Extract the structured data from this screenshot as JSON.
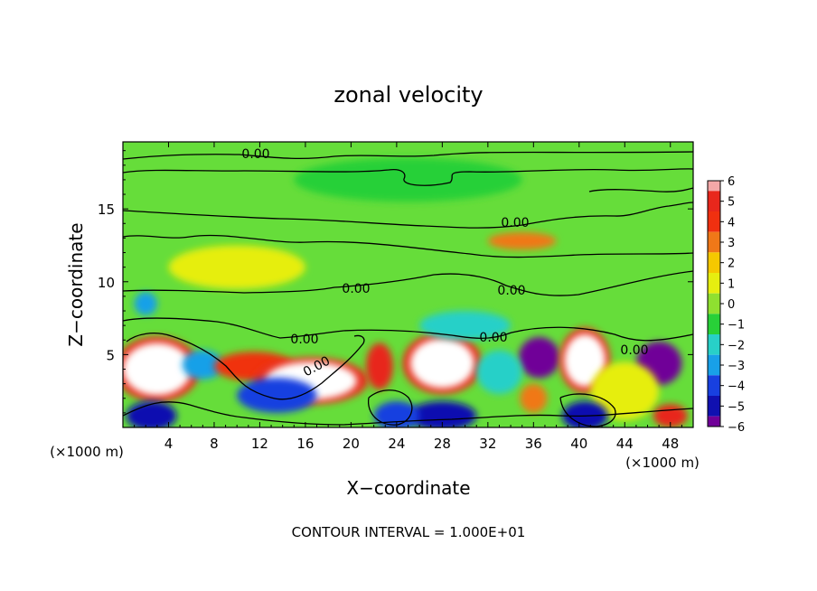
{
  "chart_data": {
    "type": "heatmap",
    "title": "zonal velocity",
    "xlabel": "X−coordinate",
    "ylabel": "Z−coordinate",
    "x_unit_left": "(×1000 m)",
    "x_unit_right": "(×1000 m)",
    "x_ticks": [
      4,
      8,
      12,
      16,
      20,
      24,
      28,
      32,
      36,
      40,
      44,
      48
    ],
    "x_tick_labels": [
      "4",
      "8",
      "12",
      "16",
      "20",
      "24",
      "28",
      "32",
      "36",
      "40",
      "44",
      "48"
    ],
    "y_ticks": [
      5,
      10,
      15
    ],
    "y_tick_labels": [
      "5",
      "10",
      "15"
    ],
    "xlim": [
      0,
      50
    ],
    "ylim": [
      0,
      19.6
    ],
    "colorbar": {
      "ticks": [
        6,
        5,
        4,
        3,
        2,
        1,
        0,
        -1,
        -2,
        -3,
        -4,
        -5,
        -6
      ],
      "labels": [
        "6",
        "5",
        "4",
        "3",
        "2",
        "1",
        "0",
        "−1",
        "−2",
        "−3",
        "−4",
        "−5",
        "−6"
      ],
      "colors": [
        "#f4a8a8",
        "#e8271c",
        "#f03010",
        "#f07818",
        "#f5c800",
        "#e6ee10",
        "#8fe030",
        "#28d038",
        "#28d0c8",
        "#18a0e8",
        "#1840e0",
        "#1010b0",
        "#700098"
      ],
      "vmin": -6,
      "vmax": 6
    },
    "contour_labels": [
      "0.00",
      "0.00",
      "0.00",
      "0.00",
      "0.00",
      "0.00",
      "0.00",
      "0.00"
    ],
    "contour_interval_text": "CONTOUR INTERVAL = 1.000E+01",
    "features": [
      {
        "x": 3.0,
        "z": 4.0,
        "value": 8,
        "rx": 3.0,
        "rz": 1.8
      },
      {
        "x": 7.0,
        "z": 4.3,
        "value": -3,
        "rx": 1.8,
        "rz": 1.0
      },
      {
        "x": 11.5,
        "z": 4.2,
        "value": 4,
        "rx": 3.5,
        "rz": 1.0
      },
      {
        "x": 16.5,
        "z": 3.2,
        "value": 9,
        "rx": 4.0,
        "rz": 1.3
      },
      {
        "x": 13.5,
        "z": 2.2,
        "value": -4,
        "rx": 3.5,
        "rz": 1.2
      },
      {
        "x": 22.5,
        "z": 4.2,
        "value": 5,
        "rx": 1.2,
        "rz": 1.6
      },
      {
        "x": 28.0,
        "z": 4.4,
        "value": 8,
        "rx": 2.8,
        "rz": 1.7
      },
      {
        "x": 28.0,
        "z": 0.8,
        "value": -4.5,
        "rx": 3.0,
        "rz": 1.0
      },
      {
        "x": 24.0,
        "z": 0.8,
        "value": -3.5,
        "rx": 2.0,
        "rz": 1.0
      },
      {
        "x": 36.5,
        "z": 4.8,
        "value": -6,
        "rx": 1.8,
        "rz": 1.4
      },
      {
        "x": 33.0,
        "z": 3.8,
        "value": -2,
        "rx": 2.0,
        "rz": 1.5
      },
      {
        "x": 40.5,
        "z": 4.6,
        "value": 8,
        "rx": 1.8,
        "rz": 1.8
      },
      {
        "x": 47.0,
        "z": 4.4,
        "value": -6,
        "rx": 2.0,
        "rz": 1.5
      },
      {
        "x": 44.0,
        "z": 2.5,
        "value": 1.5,
        "rx": 3.0,
        "rz": 2.0
      },
      {
        "x": 36.0,
        "z": 2.0,
        "value": 3,
        "rx": 1.2,
        "rz": 1.0
      },
      {
        "x": 40.5,
        "z": 0.8,
        "value": -5,
        "rx": 2.0,
        "rz": 1.0
      },
      {
        "x": 48.0,
        "z": 0.8,
        "value": 5,
        "rx": 1.5,
        "rz": 0.8
      },
      {
        "x": 2.5,
        "z": 0.8,
        "value": -5,
        "rx": 2.2,
        "rz": 1.0
      },
      {
        "x": 35.0,
        "z": 12.8,
        "value": 3,
        "rx": 3.0,
        "rz": 0.6
      },
      {
        "x": 2.0,
        "z": 8.5,
        "value": -2.5,
        "rx": 1.0,
        "rz": 0.8
      },
      {
        "x": 30.0,
        "z": 7.0,
        "value": -1.5,
        "rx": 4.0,
        "rz": 1.0
      },
      {
        "x": 10.0,
        "z": 11.0,
        "value": 1,
        "rx": 6.0,
        "rz": 1.5
      },
      {
        "x": 25.0,
        "z": 17.0,
        "value": -0.8,
        "rx": 10.0,
        "rz": 1.5
      }
    ]
  }
}
